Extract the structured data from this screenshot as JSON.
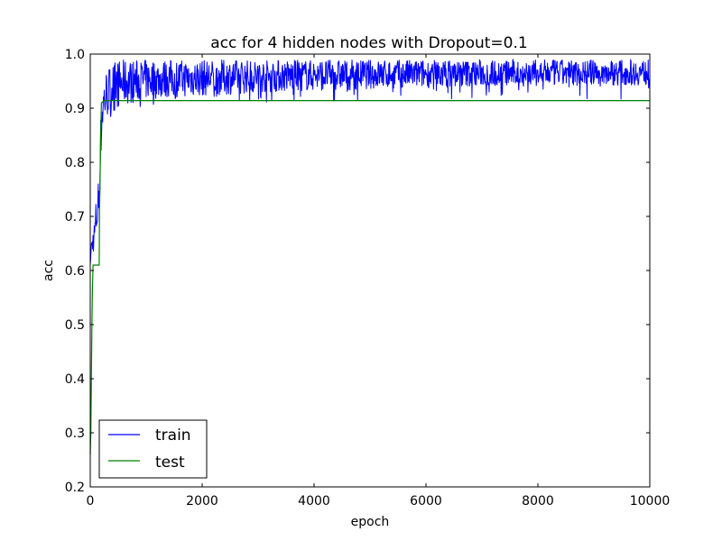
{
  "chart_data": {
    "type": "line",
    "title": "acc for 4 hidden nodes with Dropout=0.1",
    "xlabel": "epoch",
    "ylabel": "acc",
    "xlim": [
      0,
      10000
    ],
    "ylim": [
      0.2,
      1.0
    ],
    "x_ticks": [
      0,
      2000,
      4000,
      6000,
      8000,
      10000
    ],
    "y_ticks": [
      0.2,
      0.3,
      0.4,
      0.5,
      0.6,
      0.7,
      0.8,
      0.9,
      1.0
    ],
    "x_tick_labels": [
      "0",
      "2000",
      "4000",
      "6000",
      "8000",
      "10000"
    ],
    "y_tick_labels": [
      "0.2",
      "0.3",
      "0.4",
      "0.5",
      "0.6",
      "0.7",
      "0.8",
      "0.9",
      "1.0"
    ],
    "grid": false,
    "legend_position": "lower-left",
    "series": [
      {
        "name": "train",
        "color": "#0000ff",
        "x": [
          0,
          20,
          50,
          80,
          100,
          130,
          160,
          190,
          220,
          260,
          300,
          350,
          400,
          500,
          600,
          800,
          1000,
          1300,
          1600,
          2000,
          2500,
          3000,
          3500,
          4000,
          5000,
          6000,
          7000,
          8000,
          9000,
          10000
        ],
        "y": [
          0.62,
          0.64,
          0.66,
          0.68,
          0.7,
          0.72,
          0.76,
          0.85,
          0.9,
          0.92,
          0.93,
          0.935,
          0.94,
          0.945,
          0.948,
          0.95,
          0.953,
          0.955,
          0.957,
          0.958,
          0.96,
          0.962,
          0.963,
          0.964,
          0.965,
          0.966,
          0.967,
          0.967,
          0.968,
          0.968
        ],
        "band_low": [
          0.61,
          0.62,
          0.63,
          0.64,
          0.65,
          0.67,
          0.7,
          0.8,
          0.85,
          0.87,
          0.88,
          0.89,
          0.895,
          0.9,
          0.905,
          0.91,
          0.915,
          0.918,
          0.92,
          0.922,
          0.925,
          0.928,
          0.93,
          0.932,
          0.935,
          0.937,
          0.94,
          0.94,
          0.942,
          0.942
        ],
        "band_high": [
          0.64,
          0.66,
          0.68,
          0.7,
          0.73,
          0.75,
          0.8,
          0.9,
          0.95,
          0.97,
          0.975,
          0.98,
          0.985,
          0.99,
          0.99,
          0.99,
          0.99,
          0.99,
          0.99,
          0.99,
          0.99,
          0.99,
          0.99,
          0.99,
          0.99,
          0.99,
          0.99,
          0.99,
          0.99,
          0.99
        ],
        "band_min": [
          0.61,
          0.62,
          0.62,
          0.63,
          0.64,
          0.65,
          0.68,
          0.77,
          0.84,
          0.86,
          0.87,
          0.88,
          0.885,
          0.89,
          0.895,
          0.9,
          0.905,
          0.905,
          0.905,
          0.91,
          0.91,
          0.91,
          0.91,
          0.91,
          0.91,
          0.91,
          0.915,
          0.915,
          0.915,
          0.915
        ]
      },
      {
        "name": "test",
        "color": "#008000",
        "x": [
          0,
          10,
          20,
          30,
          40,
          50,
          60,
          70,
          80,
          100,
          130,
          160,
          165,
          180,
          190,
          200,
          250,
          300,
          500,
          1000,
          2000,
          4000,
          6000,
          8000,
          10000
        ],
        "y": [
          0.26,
          0.3,
          0.4,
          0.5,
          0.57,
          0.61,
          0.61,
          0.61,
          0.61,
          0.61,
          0.61,
          0.61,
          0.7,
          0.8,
          0.87,
          0.91,
          0.914,
          0.914,
          0.914,
          0.914,
          0.914,
          0.914,
          0.914,
          0.914,
          0.914
        ]
      }
    ]
  }
}
